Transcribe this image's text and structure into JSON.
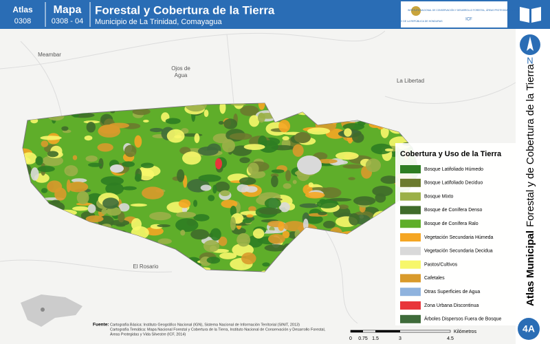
{
  "header": {
    "atlas_label": "Atlas",
    "atlas_code": "0308",
    "map_label": "Mapa",
    "map_code": "0308 - 04",
    "title": "Forestal y Cobertura de la Tierra",
    "subtitle": "Municipio de La Trinidad, Comayagua",
    "logo_government": "GOBIERNO DE LA REPÚBLICA DE HONDURAS",
    "logo_institute": "INSTITUTO NACIONAL DE CONSERVACIÓN Y DESARROLLO FORESTAL, ÁREAS PROTEGIDAS Y VIDA SILVESTRE",
    "logo_acronym": "ICF"
  },
  "sidebar": {
    "north": "N",
    "atlas_bold": "Atlas Municipal",
    "atlas_rest": "Forestal y de Cobertura de la Tierra",
    "page": "4A"
  },
  "places": [
    "Meambar",
    "Ojos de\nAgua",
    "La Libertad",
    "El Rosario"
  ],
  "legend": {
    "title": "Cobertura y Uso de la Tierra",
    "items": [
      {
        "label": "Bosque Latifoliado Húmedo",
        "color": "#2e7d22"
      },
      {
        "label": "Bosque Latifoliado Deciduo",
        "color": "#6b7a2e"
      },
      {
        "label": "Bosque Mixto",
        "color": "#9bb048"
      },
      {
        "label": "Bosque de Conífera Denso",
        "color": "#3f6b2a"
      },
      {
        "label": "Bosque de Conífera Ralo",
        "color": "#5fae2a"
      },
      {
        "label": "Vegetación Secundaria Húmeda",
        "color": "#f5a623"
      },
      {
        "label": "Vegetación Secundaria Decidua",
        "color": "#d9d9d9"
      },
      {
        "label": "Pastos/Cultivos",
        "color": "#f7f76a"
      },
      {
        "label": "Cafetales",
        "color": "#d99a2b"
      },
      {
        "label": "Otras Superficies de Agua",
        "color": "#8fb3de"
      },
      {
        "label": "Zona Urbana Discontinua",
        "color": "#e8353a"
      },
      {
        "label": "Árboles Dispersos Fuera de Bosque",
        "color": "#3f6b3a"
      }
    ]
  },
  "source": {
    "label": "Fuente:",
    "lines": [
      "Cartografía Básica: Instituto Geográfico Nacional (IGN), Sistema Nacional de Información Territorial (SINIT, 2013)",
      "Cartografía Temática: Mapa Nacional Forestal y Cobertura de la Tierra, Instituto Nacional de Conservación y Desarrollo Forestal,",
      "Áreas Protegidas y Vida Silvestre (ICF, 2014)"
    ]
  },
  "scale": {
    "ticks": [
      "0",
      "0.75",
      "1.5",
      "3",
      "4.5"
    ],
    "unit": "Kilómetros"
  }
}
